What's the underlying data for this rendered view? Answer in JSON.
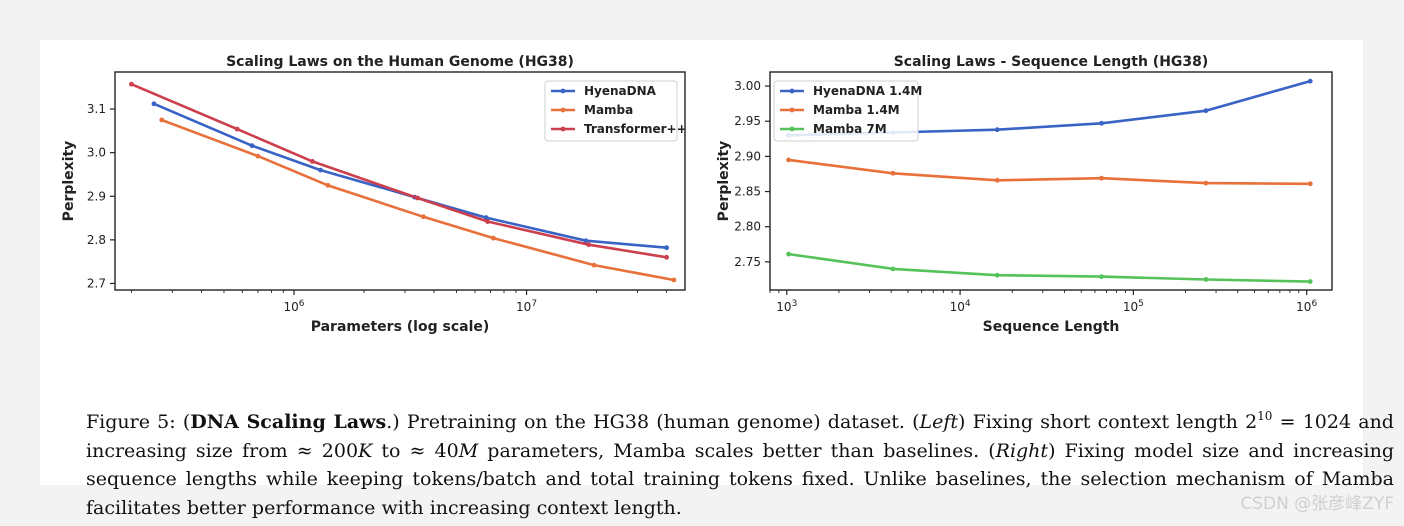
{
  "chart_data": [
    {
      "type": "line",
      "title": "Scaling Laws on the Human Genome (HG38)",
      "xlabel": "Parameters (log scale)",
      "ylabel": "Perplexity",
      "xscale": "log",
      "xlim": [
        170000,
        48000000
      ],
      "ylim": [
        2.685,
        3.185
      ],
      "yticks": [
        2.7,
        2.8,
        2.9,
        3.0,
        3.1
      ],
      "ytick_labels": [
        "2.7",
        "2.8",
        "2.9",
        "3.0",
        "3.1"
      ],
      "xticks": [
        1000000,
        10000000
      ],
      "xtick_labels": [
        {
          "base": "10",
          "exp": "6"
        },
        {
          "base": "10",
          "exp": "7"
        }
      ],
      "grid": false,
      "legend": "top-right",
      "series": [
        {
          "name": "HyenaDNA",
          "color": "#3a63c6",
          "x": [
            250000,
            660000,
            1300000,
            3300000,
            6700000,
            18000000,
            40000000
          ],
          "y": [
            3.112,
            3.016,
            2.96,
            2.898,
            2.851,
            2.798,
            2.782
          ]
        },
        {
          "name": "Mamba",
          "color": "#e8703a",
          "x": [
            270000,
            700000,
            1400000,
            3600000,
            7200000,
            19500000,
            43000000
          ],
          "y": [
            3.075,
            2.992,
            2.925,
            2.853,
            2.804,
            2.742,
            2.708
          ]
        },
        {
          "name": "Transformer++",
          "color": "#cc3f4c",
          "x": [
            200000,
            570000,
            1200000,
            3400000,
            6800000,
            18500000,
            40000000
          ],
          "y": [
            3.157,
            3.054,
            2.98,
            2.896,
            2.842,
            2.789,
            2.76
          ]
        }
      ]
    },
    {
      "type": "line",
      "title": "Scaling Laws - Sequence Length (HG38)",
      "xlabel": "Sequence Length",
      "ylabel": "Perplexity",
      "xscale": "log",
      "xlim": [
        800,
        1400000
      ],
      "ylim": [
        2.71,
        3.02
      ],
      "yticks": [
        2.75,
        2.8,
        2.85,
        2.9,
        2.95,
        3.0
      ],
      "ytick_labels": [
        "2.75",
        "2.80",
        "2.85",
        "2.90",
        "2.95",
        "3.00"
      ],
      "xticks": [
        1000,
        10000,
        100000,
        1000000
      ],
      "xtick_labels": [
        {
          "base": "10",
          "exp": "3"
        },
        {
          "base": "10",
          "exp": "4"
        },
        {
          "base": "10",
          "exp": "5"
        },
        {
          "base": "10",
          "exp": "6"
        }
      ],
      "grid": false,
      "legend": "top-left",
      "series": [
        {
          "name": "HyenaDNA 1.4M",
          "color": "#3a63c6",
          "x": [
            1024,
            4096,
            16384,
            65536,
            262144,
            1048576
          ],
          "y": [
            2.93,
            2.934,
            2.938,
            2.947,
            2.965,
            3.007
          ]
        },
        {
          "name": "Mamba 1.4M",
          "color": "#e8703a",
          "x": [
            1024,
            4096,
            16384,
            65536,
            262144,
            1048576
          ],
          "y": [
            2.895,
            2.876,
            2.866,
            2.869,
            2.862,
            2.861
          ]
        },
        {
          "name": "Mamba 7M",
          "color": "#56c25a",
          "x": [
            1024,
            4096,
            16384,
            65536,
            262144,
            1048576
          ],
          "y": [
            2.761,
            2.74,
            2.731,
            2.729,
            2.725,
            2.722
          ]
        }
      ]
    }
  ],
  "caption": {
    "fig_label": "Figure 5: (",
    "bold": "DNA Scaling Laws",
    "t1": ".) Pretraining on the HG38 (human genome) dataset. (",
    "left": "Left",
    "t2": ") Fixing short context length 2",
    "sup": "10",
    "t3": " = 1024 and increasing size from ≈ 200",
    "k": "K",
    "t4": " to ≈ 40",
    "m": "M",
    "t5": " parameters, Mamba scales better than baselines. (",
    "right": "Right",
    "t6": ") Fixing model size and increasing sequence lengths while keeping tokens/batch and total training tokens fixed. Unlike baselines, the selection mechanism of Mamba facilitates better performance with increasing context length."
  },
  "watermark": "CSDN @张彦峰ZYF"
}
